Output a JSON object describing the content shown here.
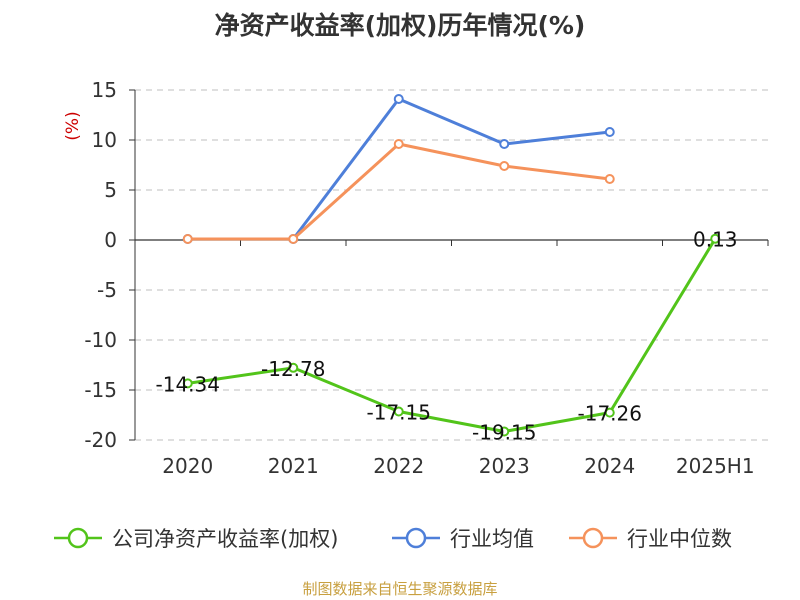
{
  "chart_data": {
    "type": "line",
    "title": "净资产收益率(加权)历年情况(%)",
    "ylabel": "(%)",
    "xlabel": "",
    "ylim": [
      -20,
      15
    ],
    "yticks": [
      15,
      10,
      5,
      0,
      -5,
      -10,
      -15,
      -20
    ],
    "categories": [
      "2020",
      "2021",
      "2022",
      "2023",
      "2024",
      "2025H1"
    ],
    "grid": true,
    "legend_position": "bottom",
    "series": [
      {
        "name": "公司净资产收益率(加权)",
        "color": "#52c41a",
        "values": [
          -14.34,
          -12.78,
          -17.15,
          -19.15,
          -17.26,
          0.13
        ],
        "labels": [
          "-14.34",
          "-12.78",
          "-17.15",
          "-19.15",
          "-17.26",
          "0.13"
        ]
      },
      {
        "name": "行业均值",
        "color": "#4e7fd9",
        "values": [
          0.1,
          0.1,
          14.1,
          9.6,
          10.8,
          null
        ]
      },
      {
        "name": "行业中位数",
        "color": "#f5925b",
        "values": [
          0.1,
          0.1,
          9.6,
          7.4,
          6.1,
          null
        ]
      }
    ]
  },
  "source": "制图数据来自恒生聚源数据库"
}
